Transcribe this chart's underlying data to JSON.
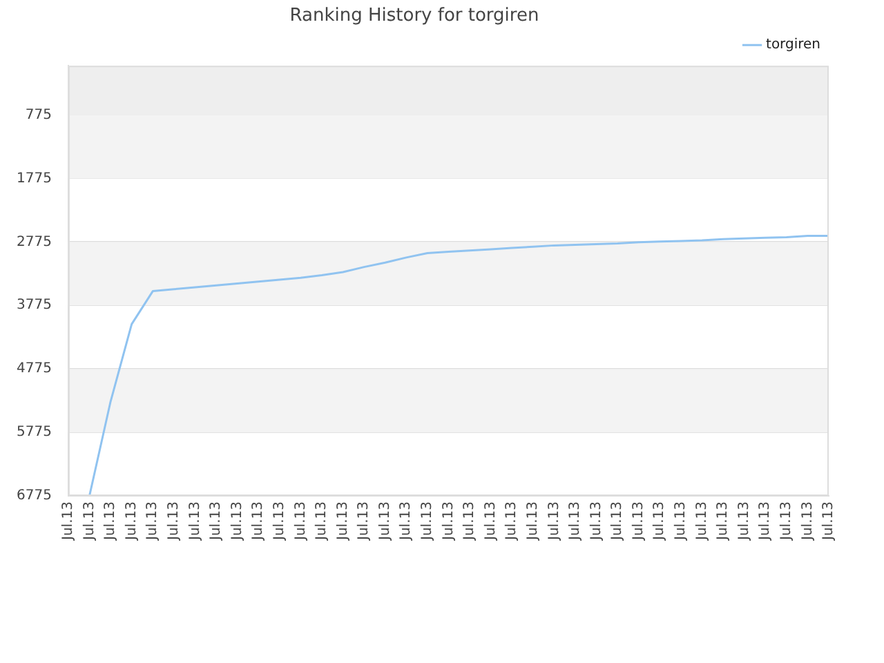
{
  "chart_data": {
    "type": "line",
    "title": "Ranking History for torgiren",
    "categories": [
      "Jul.13",
      "Jul.13",
      "Jul.13",
      "Jul.13",
      "Jul.13",
      "Jul.13",
      "Jul.13",
      "Jul.13",
      "Jul.13",
      "Jul.13",
      "Jul.13",
      "Jul.13",
      "Jul.13",
      "Jul.13",
      "Jul.13",
      "Jul.13",
      "Jul.13",
      "Jul.13",
      "Jul.13",
      "Jul.13",
      "Jul.13",
      "Jul.13",
      "Jul.13",
      "Jul.13",
      "Jul.13",
      "Jul.13",
      "Jul.13",
      "Jul.13",
      "Jul.13",
      "Jul.13",
      "Jul.13",
      "Jul.13",
      "Jul.13",
      "Jul.13",
      "Jul.13",
      "Jul.13",
      "Jul.13"
    ],
    "series": [
      {
        "name": "torgiren",
        "color": "#90c3f0",
        "values": [
          null,
          6775,
          5290,
          4070,
          3550,
          3520,
          3490,
          3460,
          3430,
          3400,
          3370,
          3340,
          3300,
          3250,
          3170,
          3100,
          3020,
          2950,
          2930,
          2910,
          2890,
          2870,
          2850,
          2830,
          2820,
          2810,
          2800,
          2780,
          2770,
          2760,
          2750,
          2730,
          2720,
          2710,
          2700,
          2680,
          2680
        ]
      }
    ],
    "ylim": [
      6775,
      0
    ],
    "yticks": [
      775,
      1775,
      2775,
      3775,
      4775,
      5775,
      6775
    ],
    "bands": [
      {
        "axis": "y",
        "from": 0,
        "to": 775,
        "color": "#eeeeee"
      },
      {
        "axis": "y",
        "from": 775,
        "to": 1775,
        "color": "#f3f3f3"
      },
      {
        "axis": "y",
        "from": 2775,
        "to": 3775,
        "color": "#f3f3f3"
      },
      {
        "axis": "y",
        "from": 4775,
        "to": 5775,
        "color": "#f3f3f3"
      }
    ],
    "grid": "y",
    "legend": "top right",
    "marker": "none",
    "line_style": "solid"
  }
}
